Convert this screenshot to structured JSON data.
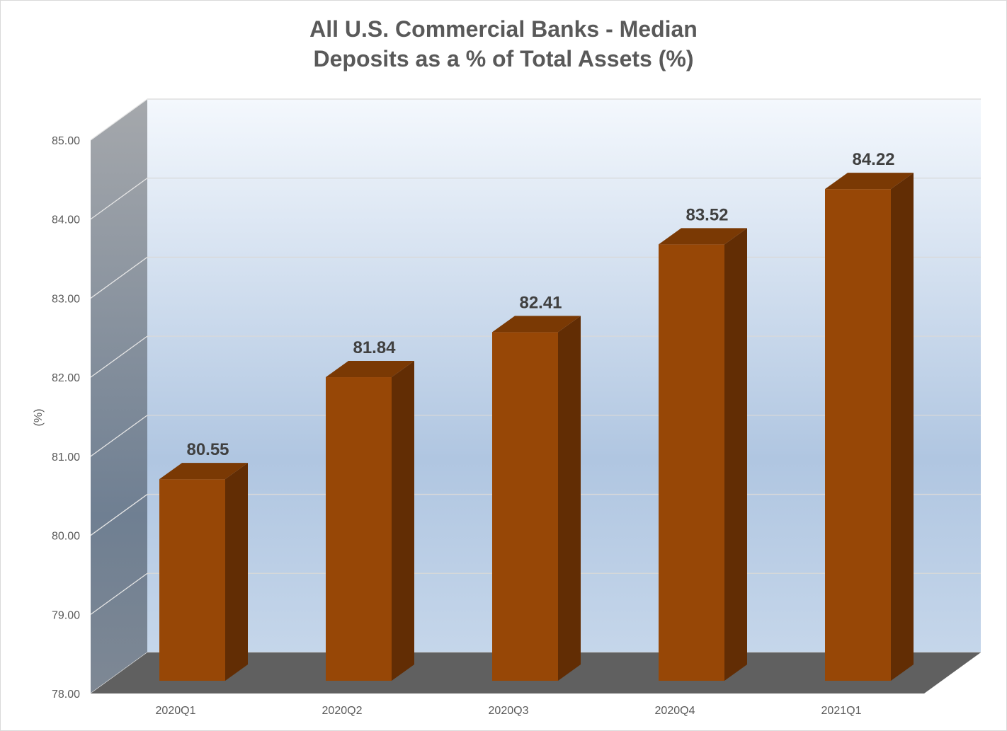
{
  "chart_data": {
    "type": "bar",
    "title": "All U.S. Commercial Banks - Median Deposits as a % of Total Assets (%)",
    "title_lines": [
      "All U.S. Commercial Banks - Median",
      "Deposits as a % of Total Assets (%)"
    ],
    "categories": [
      "2020Q1",
      "2020Q2",
      "2020Q3",
      "2020Q4",
      "2021Q1"
    ],
    "values": [
      80.55,
      81.84,
      82.41,
      83.52,
      84.22
    ],
    "data_labels": [
      "80.55",
      "81.84",
      "82.41",
      "83.52",
      "84.22"
    ],
    "xlabel": "",
    "ylabel": "(%)",
    "ylim": [
      78.0,
      85.0
    ],
    "yticks": [
      "78.00",
      "79.00",
      "80.00",
      "81.00",
      "82.00",
      "83.00",
      "84.00",
      "85.00"
    ],
    "grid": true,
    "legend": "none",
    "style": "3d-column",
    "colors": {
      "bar_front": "#974706",
      "bar_side": "#622D04",
      "bar_top": "#7A3904",
      "floor": "#606060",
      "wall_top": "#F4F8FD",
      "wall_bottom": "#C5D6EA",
      "side_wall_top": "#A5A8AC",
      "side_wall_bottom": "#6F7F92"
    }
  }
}
